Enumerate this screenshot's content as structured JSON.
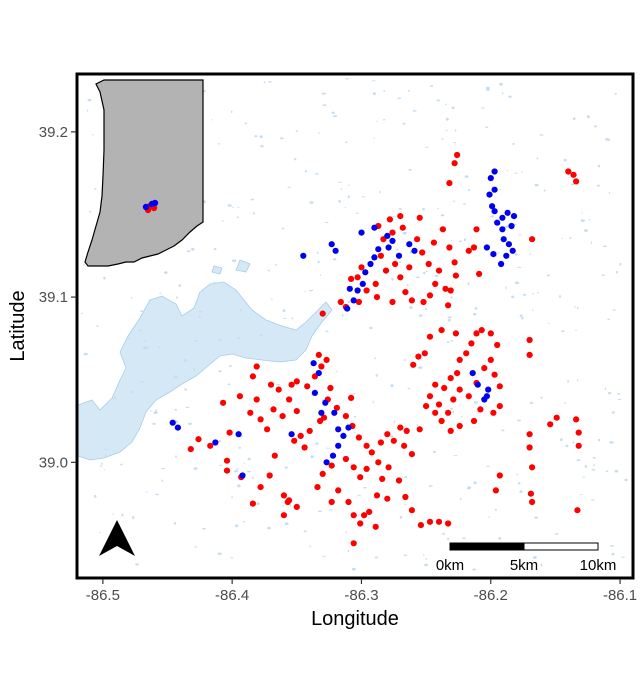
{
  "chart_data": {
    "type": "scatter",
    "xlabel": "Longitude",
    "ylabel": "Latitude",
    "xlim": [
      -86.52,
      -86.09
    ],
    "ylim": [
      38.93,
      39.235
    ],
    "x_ticks": [
      -86.5,
      -86.4,
      -86.3,
      -86.2,
      -86.1
    ],
    "x_tick_labels": [
      "-86.5",
      "-86.4",
      "-86.3",
      "-86.2",
      "-86.1"
    ],
    "y_ticks": [
      39.0,
      39.1,
      39.2
    ],
    "y_tick_labels": [
      "39.0",
      "39.1",
      "39.2"
    ],
    "scale_bar": {
      "labels": [
        "0km",
        "5km",
        "10km"
      ]
    },
    "inset": "Indiana state outline with study area marked",
    "colors": {
      "red": "#ff0000",
      "blue": "#0000ee",
      "water": "#d4e8f6",
      "water_edge": "#a8cdea",
      "state_fill": "#b3b3b3"
    },
    "series": [
      {
        "color": "red",
        "points": [
          [
            -86.226,
            39.186
          ],
          [
            -86.228,
            39.181
          ],
          [
            -86.232,
            39.169
          ],
          [
            -86.255,
            39.148
          ],
          [
            -86.27,
            39.149
          ],
          [
            -86.268,
            39.142
          ],
          [
            -86.278,
            39.147
          ],
          [
            -86.276,
            39.139
          ],
          [
            -86.287,
            39.143
          ],
          [
            -86.283,
            39.135
          ],
          [
            -86.285,
            39.125
          ],
          [
            -86.281,
            39.116
          ],
          [
            -86.289,
            39.108
          ],
          [
            -86.296,
            39.104
          ],
          [
            -86.3,
            39.118
          ],
          [
            -86.303,
            39.112
          ],
          [
            -86.308,
            39.111
          ],
          [
            -86.302,
            39.097
          ],
          [
            -86.312,
            39.094
          ],
          [
            -86.316,
            39.097
          ],
          [
            -86.33,
            39.09
          ],
          [
            -86.257,
            39.135
          ],
          [
            -86.253,
            39.127
          ],
          [
            -86.248,
            39.12
          ],
          [
            -86.244,
            39.133
          ],
          [
            -86.237,
            39.141
          ],
          [
            -86.232,
            39.13
          ],
          [
            -86.228,
            39.121
          ],
          [
            -86.227,
            39.113
          ],
          [
            -86.231,
            39.104
          ],
          [
            -86.233,
            39.095
          ],
          [
            -86.235,
            39.105
          ],
          [
            -86.24,
            39.116
          ],
          [
            -86.243,
            39.108
          ],
          [
            -86.247,
            39.101
          ],
          [
            -86.252,
            39.097
          ],
          [
            -86.261,
            39.098
          ],
          [
            -86.266,
            39.103
          ],
          [
            -86.27,
            39.112
          ],
          [
            -86.263,
            39.118
          ],
          [
            -86.274,
            39.12
          ],
          [
            -86.288,
            39.1
          ],
          [
            -86.276,
            39.097
          ],
          [
            -86.211,
            39.141
          ],
          [
            -86.213,
            39.13
          ],
          [
            -86.217,
            39.128
          ],
          [
            -86.209,
            39.114
          ],
          [
            -86.168,
            39.135
          ],
          [
            -86.14,
            39.176
          ],
          [
            -86.136,
            39.174
          ],
          [
            -86.134,
            39.17
          ],
          [
            -86.227,
            39.078
          ],
          [
            -86.238,
            39.08
          ],
          [
            -86.247,
            39.076
          ],
          [
            -86.251,
            39.066
          ],
          [
            -86.256,
            39.064
          ],
          [
            -86.26,
            39.059
          ],
          [
            -86.215,
            39.072
          ],
          [
            -86.211,
            39.078
          ],
          [
            -86.207,
            39.08
          ],
          [
            -86.219,
            39.066
          ],
          [
            -86.224,
            39.062
          ],
          [
            -86.226,
            39.054
          ],
          [
            -86.231,
            39.051
          ],
          [
            -86.236,
            39.045
          ],
          [
            -86.243,
            39.047
          ],
          [
            -86.247,
            39.04
          ],
          [
            -86.24,
            39.035
          ],
          [
            -86.233,
            39.03
          ],
          [
            -86.229,
            39.038
          ],
          [
            -86.224,
            39.044
          ],
          [
            -86.217,
            39.04
          ],
          [
            -86.211,
            39.048
          ],
          [
            -86.205,
            39.057
          ],
          [
            -86.2,
            39.062
          ],
          [
            -86.197,
            39.053
          ],
          [
            -86.193,
            39.046
          ],
          [
            -86.193,
            39.034
          ],
          [
            -86.198,
            39.03
          ],
          [
            -86.208,
            39.032
          ],
          [
            -86.213,
            39.025
          ],
          [
            -86.224,
            39.022
          ],
          [
            -86.231,
            39.019
          ],
          [
            -86.238,
            39.025
          ],
          [
            -86.243,
            39.03
          ],
          [
            -86.25,
            39.034
          ],
          [
            -86.195,
            39.071
          ],
          [
            -86.2,
            39.078
          ],
          [
            -86.17,
            39.074
          ],
          [
            -86.17,
            39.065
          ],
          [
            -86.154,
            39.023
          ],
          [
            -86.149,
            39.027
          ],
          [
            -86.134,
            39.026
          ],
          [
            -86.17,
            39.017
          ],
          [
            -86.17,
            39.009
          ],
          [
            -86.132,
            39.018
          ],
          [
            -86.132,
            39.01
          ],
          [
            -86.168,
            38.997
          ],
          [
            -86.169,
            38.981
          ],
          [
            -86.168,
            38.976
          ],
          [
            -86.133,
            38.971
          ],
          [
            -86.193,
            38.992
          ],
          [
            -86.196,
            38.983
          ],
          [
            -86.233,
            38.963
          ],
          [
            -86.24,
            38.964
          ],
          [
            -86.247,
            38.964
          ],
          [
            -86.381,
            39.058
          ],
          [
            -86.384,
            39.052
          ],
          [
            -86.37,
            39.047
          ],
          [
            -86.364,
            39.044
          ],
          [
            -86.354,
            39.047
          ],
          [
            -86.35,
            39.049
          ],
          [
            -86.342,
            39.046
          ],
          [
            -86.336,
            39.052
          ],
          [
            -86.331,
            39.058
          ],
          [
            -86.327,
            39.062
          ],
          [
            -86.333,
            39.065
          ],
          [
            -86.381,
            39.038
          ],
          [
            -86.386,
            39.03
          ],
          [
            -86.378,
            39.026
          ],
          [
            -86.373,
            39.02
          ],
          [
            -86.368,
            39.032
          ],
          [
            -86.361,
            39.028
          ],
          [
            -86.356,
            39.038
          ],
          [
            -86.35,
            39.031
          ],
          [
            -86.347,
            39.016
          ],
          [
            -86.352,
            39.013
          ],
          [
            -86.344,
            39.009
          ],
          [
            -86.34,
            39.019
          ],
          [
            -86.332,
            39.025
          ],
          [
            -86.326,
            39.038
          ],
          [
            -86.324,
            39.045
          ],
          [
            -86.319,
            39.033
          ],
          [
            -86.312,
            39.028
          ],
          [
            -86.307,
            39.022
          ],
          [
            -86.302,
            39.015
          ],
          [
            -86.296,
            39.01
          ],
          [
            -86.292,
            39.006
          ],
          [
            -86.287,
            39.0
          ],
          [
            -86.296,
            38.996
          ],
          [
            -86.301,
            38.991
          ],
          [
            -86.306,
            38.997
          ],
          [
            -86.312,
            39.002
          ],
          [
            -86.323,
            38.998
          ],
          [
            -86.33,
            38.993
          ],
          [
            -86.334,
            38.985
          ],
          [
            -86.318,
            38.983
          ],
          [
            -86.31,
            38.976
          ],
          [
            -86.306,
            38.968
          ],
          [
            -86.301,
            38.963
          ],
          [
            -86.294,
            38.97
          ],
          [
            -86.288,
            38.98
          ],
          [
            -86.284,
            38.99
          ],
          [
            -86.279,
            38.997
          ],
          [
            -86.271,
            38.989
          ],
          [
            -86.266,
            38.979
          ],
          [
            -86.261,
            38.971
          ],
          [
            -86.254,
            38.962
          ],
          [
            -86.261,
            39.005
          ],
          [
            -86.267,
            39.01
          ],
          [
            -86.275,
            39.013
          ],
          [
            -86.28,
            39.017
          ],
          [
            -86.285,
            39.012
          ],
          [
            -86.27,
            39.021
          ],
          [
            -86.265,
            39.019
          ],
          [
            -86.255,
            39.02
          ],
          [
            -86.28,
            38.978
          ],
          [
            -86.289,
            38.961
          ],
          [
            -86.298,
            38.968
          ],
          [
            -86.306,
            38.951
          ],
          [
            -86.323,
            38.976
          ],
          [
            -86.394,
            39.04
          ],
          [
            -86.407,
            39.036
          ],
          [
            -86.402,
            39.018
          ],
          [
            -86.417,
            39.01
          ],
          [
            -86.426,
            39.014
          ],
          [
            -86.432,
            39.008
          ],
          [
            -86.404,
            39.001
          ],
          [
            -86.404,
            38.995
          ],
          [
            -86.393,
            38.991
          ],
          [
            -86.384,
            38.975
          ],
          [
            -86.36,
            38.98
          ],
          [
            -86.357,
            38.976
          ],
          [
            -86.36,
            38.968
          ],
          [
            -86.35,
            38.973
          ],
          [
            -86.356,
            38.977
          ],
          [
            -86.378,
            38.985
          ],
          [
            -86.371,
            38.992
          ],
          [
            -86.367,
            39.004
          ],
          [
            -86.329,
            39.027
          ],
          [
            -86.308,
            39.039
          ]
        ]
      },
      {
        "color": "blue",
        "points": [
          [
            -86.197,
            39.176
          ],
          [
            -86.2,
            39.172
          ],
          [
            -86.197,
            39.165
          ],
          [
            -86.201,
            39.162
          ],
          [
            -86.199,
            39.155
          ],
          [
            -86.197,
            39.152
          ],
          [
            -86.191,
            39.148
          ],
          [
            -86.187,
            39.151
          ],
          [
            -86.182,
            39.149
          ],
          [
            -86.184,
            39.143
          ],
          [
            -86.191,
            39.141
          ],
          [
            -86.195,
            39.145
          ],
          [
            -86.19,
            39.135
          ],
          [
            -86.186,
            39.132
          ],
          [
            -86.183,
            39.128
          ],
          [
            -86.188,
            39.125
          ],
          [
            -86.192,
            39.12
          ],
          [
            -86.198,
            39.126
          ],
          [
            -86.203,
            39.13
          ],
          [
            -86.29,
            39.142
          ],
          [
            -86.3,
            39.139
          ],
          [
            -86.276,
            39.134
          ],
          [
            -86.263,
            39.132
          ],
          [
            -86.259,
            39.128
          ],
          [
            -86.271,
            39.125
          ],
          [
            -86.279,
            39.13
          ],
          [
            -86.287,
            39.129
          ],
          [
            -86.29,
            39.124
          ],
          [
            -86.293,
            39.12
          ],
          [
            -86.297,
            39.115
          ],
          [
            -86.299,
            39.108
          ],
          [
            -86.303,
            39.104
          ],
          [
            -86.309,
            39.105
          ],
          [
            -86.306,
            39.098
          ],
          [
            -86.311,
            39.093
          ],
          [
            -86.323,
            39.132
          ],
          [
            -86.32,
            39.128
          ],
          [
            -86.345,
            39.125
          ],
          [
            -86.28,
            39.137
          ],
          [
            -86.337,
            39.06
          ],
          [
            -86.333,
            39.054
          ],
          [
            -86.336,
            39.042
          ],
          [
            -86.331,
            39.03
          ],
          [
            -86.328,
            39.036
          ],
          [
            -86.321,
            39.03
          ],
          [
            -86.318,
            39.02
          ],
          [
            -86.314,
            39.016
          ],
          [
            -86.31,
            39.021
          ],
          [
            -86.318,
            39.01
          ],
          [
            -86.322,
            39.004
          ],
          [
            -86.327,
            39.0
          ],
          [
            -86.354,
            39.017
          ],
          [
            -86.446,
            39.024
          ],
          [
            -86.442,
            39.021
          ],
          [
            -86.413,
            39.012
          ],
          [
            -86.395,
            39.017
          ],
          [
            -86.392,
            38.992
          ],
          [
            -86.214,
            39.054
          ],
          [
            -86.21,
            39.047
          ],
          [
            -86.205,
            39.038
          ],
          [
            -86.203,
            39.04
          ],
          [
            -86.202,
            39.044
          ]
        ]
      }
    ]
  }
}
